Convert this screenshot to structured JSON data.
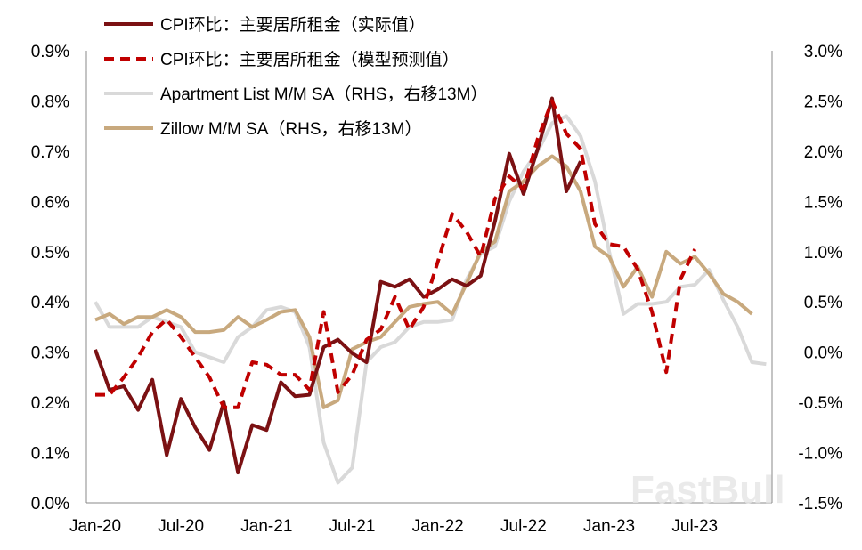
{
  "chart_data": {
    "type": "line",
    "title": "",
    "xlabel": "",
    "ylabel": "",
    "grid": false,
    "legend_position": "top-left",
    "x": [
      "Jan-20",
      "Feb-20",
      "Mar-20",
      "Apr-20",
      "May-20",
      "Jun-20",
      "Jul-20",
      "Aug-20",
      "Sep-20",
      "Oct-20",
      "Nov-20",
      "Dec-20",
      "Jan-21",
      "Feb-21",
      "Mar-21",
      "Apr-21",
      "May-21",
      "Jun-21",
      "Jul-21",
      "Aug-21",
      "Sep-21",
      "Oct-21",
      "Nov-21",
      "Dec-21",
      "Jan-22",
      "Feb-22",
      "Mar-22",
      "Apr-22",
      "May-22",
      "Jun-22",
      "Jul-22",
      "Aug-22",
      "Sep-22",
      "Oct-22",
      "Nov-22",
      "Dec-22",
      "Jan-23",
      "Feb-23",
      "Mar-23",
      "Apr-23",
      "May-23",
      "Jun-23",
      "Jul-23",
      "Aug-23",
      "Sep-23",
      "Oct-23",
      "Nov-23",
      "Dec-23"
    ],
    "x_tick_labels": [
      "Jan-20",
      "Jul-20",
      "Jan-21",
      "Jul-21",
      "Jan-22",
      "Jul-22",
      "Jan-23",
      "Jul-23"
    ],
    "left_axis": {
      "min": 0.0,
      "max": 0.9,
      "step": 0.1,
      "tick_labels": [
        "0.0%",
        "0.1%",
        "0.2%",
        "0.3%",
        "0.4%",
        "0.5%",
        "0.6%",
        "0.7%",
        "0.8%",
        "0.9%"
      ]
    },
    "right_axis": {
      "min": -1.5,
      "max": 3.0,
      "step": 0.5,
      "tick_labels": [
        "-1.5%",
        "-1.0%",
        "-0.5%",
        "0.0%",
        "0.5%",
        "1.0%",
        "1.5%",
        "2.0%",
        "2.5%",
        "3.0%"
      ]
    },
    "series": [
      {
        "name": "CPI环比：主要居所租金（实际值）",
        "axis": "left",
        "style": "solid",
        "color": "#7b1113",
        "values": [
          0.305,
          0.225,
          0.232,
          0.185,
          0.245,
          0.095,
          0.207,
          0.15,
          0.105,
          0.2,
          0.06,
          0.155,
          0.145,
          0.24,
          0.212,
          0.215,
          0.31,
          0.325,
          0.298,
          0.28,
          0.44,
          0.43,
          0.445,
          0.41,
          0.425,
          0.445,
          0.432,
          0.452,
          0.56,
          0.695,
          0.615,
          0.705,
          0.805,
          0.62,
          0.68,
          null,
          null,
          null,
          null,
          null,
          null,
          null,
          null,
          null,
          null,
          null,
          null,
          null
        ]
      },
      {
        "name": "CPI环比：主要居所租金（模型预测值）",
        "axis": "left",
        "style": "dashed",
        "color": "#c00000",
        "values": [
          0.215,
          0.215,
          0.25,
          0.29,
          0.34,
          0.365,
          0.33,
          0.29,
          0.25,
          0.19,
          0.19,
          0.28,
          0.275,
          0.255,
          0.255,
          0.225,
          0.38,
          0.22,
          0.255,
          0.325,
          0.345,
          0.41,
          0.345,
          0.39,
          0.48,
          0.575,
          0.54,
          0.49,
          0.605,
          0.65,
          0.625,
          0.725,
          0.8,
          0.735,
          0.705,
          0.555,
          0.515,
          0.51,
          0.465,
          0.38,
          0.26,
          0.445,
          0.505,
          null,
          null,
          null,
          null,
          null
        ]
      },
      {
        "name": "Apartment List  M/M SA（RHS，右移13M）",
        "axis": "right",
        "style": "solid",
        "color": "#d9d9d9",
        "values": [
          0.5,
          0.25,
          0.25,
          0.25,
          0.35,
          0.3,
          0.25,
          0.0,
          -0.05,
          -0.1,
          0.15,
          0.25,
          0.42,
          0.45,
          0.4,
          0.05,
          -0.9,
          -1.3,
          -1.15,
          -0.1,
          0.05,
          0.1,
          0.25,
          0.3,
          0.3,
          0.32,
          0.72,
          0.98,
          1.05,
          1.5,
          1.8,
          2.0,
          2.28,
          2.35,
          2.15,
          1.7,
          1.0,
          0.38,
          0.48,
          0.48,
          0.5,
          0.65,
          0.67,
          0.82,
          0.52,
          0.25,
          -0.1,
          -0.12
        ]
      },
      {
        "name": "Zillow M/M SA（RHS，右移13M）",
        "axis": "right",
        "style": "solid",
        "color": "#c8a97e",
        "values": [
          0.32,
          0.38,
          0.28,
          0.35,
          0.35,
          0.42,
          0.35,
          0.2,
          0.2,
          0.22,
          0.35,
          0.25,
          0.32,
          0.4,
          0.42,
          0.15,
          -0.55,
          -0.48,
          0.03,
          0.1,
          0.15,
          0.3,
          0.45,
          0.48,
          0.5,
          0.38,
          0.68,
          1.0,
          1.1,
          1.6,
          1.7,
          1.85,
          1.95,
          1.85,
          1.6,
          1.05,
          0.95,
          0.65,
          0.85,
          0.55,
          1.0,
          0.88,
          0.95,
          0.78,
          0.58,
          0.5,
          0.38,
          null
        ]
      }
    ]
  },
  "watermark": "FastBull"
}
